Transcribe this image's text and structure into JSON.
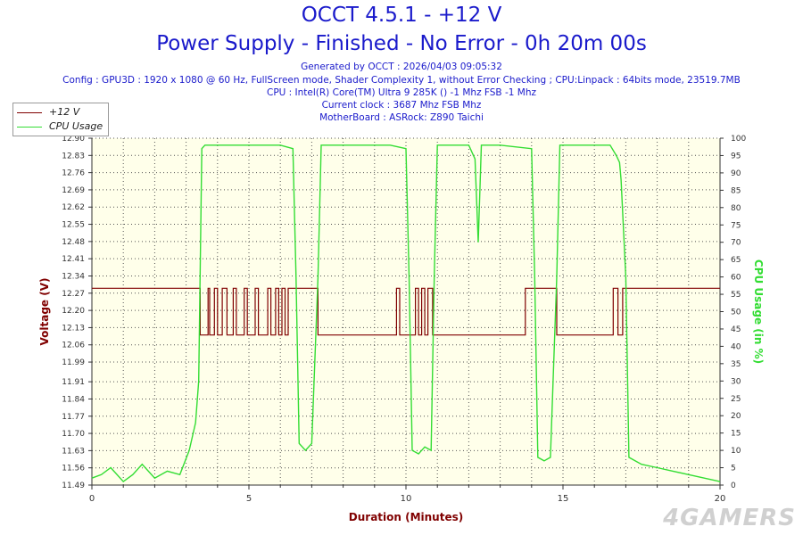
{
  "header": {
    "title": "OCCT 4.5.1 - +12 V",
    "subtitle": "Power Supply - Finished - No Error - 0h 20m 00s",
    "info_lines": [
      "Generated by OCCT : 2026/04/03 09:05:32",
      "Config : GPU3D : 1920 x 1080 @ 60 Hz, FullScreen mode, Shader Complexity 1, without Error Checking ; CPU:Linpack : 64bits mode, 23519.7MB",
      "CPU : Intel(R) Core(TM) Ultra 9 285K () -1 Mhz FSB -1 Mhz",
      "Current clock : 3687 Mhz FSB  Mhz",
      "MotherBoard : ASRock: Z890 Taichi"
    ]
  },
  "watermark": "4GAMERS",
  "colors": {
    "voltage": "#800000",
    "cpu": "#33dd33",
    "header_text": "#1a1acb",
    "plot_bg": "#ffffea"
  },
  "chart_data": {
    "type": "line",
    "xlabel": "Duration (Minutes)",
    "ylabel": "Voltage (V)",
    "y2label": "CPU Usage (in %)",
    "xlim": [
      0,
      20
    ],
    "ylim": [
      11.49,
      12.9
    ],
    "y2lim": [
      0,
      100
    ],
    "x_ticks": [
      0,
      5,
      10,
      15,
      20
    ],
    "y_ticks": [
      11.49,
      11.56,
      11.63,
      11.7,
      11.77,
      11.84,
      11.91,
      11.99,
      12.06,
      12.13,
      12.2,
      12.27,
      12.34,
      12.41,
      12.48,
      12.55,
      12.62,
      12.69,
      12.76,
      12.83,
      12.9
    ],
    "y_tick_labels": [
      "11.49",
      "11.56",
      "11.63",
      "11.70",
      "11.77",
      "11.84",
      "11.91",
      "11.99",
      "12.06",
      "12.13",
      "12.20",
      "12.27",
      "12.34",
      "12.41",
      "12.48",
      "12.55",
      "12.62",
      "12.69",
      "12.76",
      "12.83",
      "12.90"
    ],
    "y2_ticks": [
      0,
      5,
      10,
      15,
      20,
      25,
      30,
      35,
      40,
      45,
      50,
      55,
      60,
      65,
      70,
      75,
      80,
      85,
      90,
      95,
      100
    ],
    "grid": true,
    "legend_position": "top-left",
    "series": [
      {
        "name": "+12 V",
        "axis": "left",
        "x": [
          0,
          3.45,
          3.45,
          3.7,
          3.7,
          3.75,
          3.75,
          3.9,
          3.9,
          4.0,
          4.0,
          4.15,
          4.15,
          4.3,
          4.3,
          4.5,
          4.5,
          4.6,
          4.6,
          4.85,
          4.85,
          4.95,
          4.95,
          5.2,
          5.2,
          5.3,
          5.3,
          5.6,
          5.6,
          5.7,
          5.7,
          5.85,
          5.85,
          5.95,
          5.95,
          6.05,
          6.05,
          6.15,
          6.15,
          6.25,
          6.25,
          6.5,
          6.5,
          7.2,
          7.2,
          7.3,
          7.3,
          7.75,
          7.75,
          9.7,
          9.7,
          9.8,
          9.8,
          10.3,
          10.3,
          10.4,
          10.4,
          10.5,
          10.5,
          10.6,
          10.6,
          10.7,
          10.7,
          10.85,
          10.85,
          11.0,
          11.0,
          11.75,
          11.75,
          13.0,
          13.0,
          13.8,
          13.8,
          14.05,
          14.05,
          14.8,
          14.8,
          16.6,
          16.6,
          16.75,
          16.75,
          16.9,
          16.9,
          17.0,
          17.0,
          20
        ],
        "values": [
          12.29,
          12.29,
          12.1,
          12.1,
          12.29,
          12.29,
          12.1,
          12.1,
          12.29,
          12.29,
          12.1,
          12.1,
          12.29,
          12.29,
          12.1,
          12.1,
          12.29,
          12.29,
          12.1,
          12.1,
          12.29,
          12.29,
          12.1,
          12.1,
          12.29,
          12.29,
          12.1,
          12.1,
          12.29,
          12.29,
          12.1,
          12.1,
          12.29,
          12.29,
          12.1,
          12.1,
          12.29,
          12.29,
          12.1,
          12.1,
          12.29,
          12.29,
          12.29,
          12.29,
          12.1,
          12.1,
          12.1,
          12.1,
          12.1,
          12.1,
          12.29,
          12.29,
          12.1,
          12.1,
          12.29,
          12.29,
          12.1,
          12.1,
          12.29,
          12.29,
          12.1,
          12.1,
          12.29,
          12.29,
          12.1,
          12.1,
          12.1,
          12.1,
          12.1,
          12.1,
          12.1,
          12.1,
          12.29,
          12.29,
          12.29,
          12.29,
          12.1,
          12.1,
          12.29,
          12.29,
          12.1,
          12.1,
          12.29,
          12.29,
          12.29,
          12.29
        ]
      },
      {
        "name": "CPU Usage",
        "axis": "right",
        "x": [
          0,
          0.3,
          0.6,
          1.0,
          1.3,
          1.6,
          2.0,
          2.4,
          2.8,
          3.1,
          3.3,
          3.4,
          3.5,
          3.6,
          4.0,
          5.0,
          6.0,
          6.4,
          6.5,
          6.6,
          6.8,
          7.0,
          7.2,
          7.3,
          7.4,
          7.8,
          8.5,
          9.5,
          10.0,
          10.1,
          10.2,
          10.4,
          10.6,
          10.8,
          10.9,
          11.0,
          11.2,
          12.0,
          12.2,
          12.3,
          12.4,
          12.5,
          12.6,
          13.0,
          14.0,
          14.1,
          14.2,
          14.4,
          14.6,
          14.8,
          14.9,
          15.0,
          15.5,
          16.0,
          16.5,
          16.7,
          16.8,
          16.85,
          17.0,
          17.1,
          17.5,
          18.0,
          18.5,
          19.0,
          19.5,
          20
        ],
        "values": [
          2,
          3,
          5,
          1,
          3,
          6,
          2,
          4,
          3,
          10,
          18,
          30,
          97,
          98,
          98,
          98,
          98,
          97,
          60,
          12,
          10,
          12,
          60,
          98,
          98,
          98,
          98,
          98,
          97,
          60,
          10,
          9,
          11,
          10,
          60,
          98,
          98,
          98,
          94,
          70,
          98,
          98,
          98,
          98,
          97,
          60,
          8,
          7,
          8,
          60,
          98,
          98,
          98,
          98,
          98,
          95,
          93,
          88,
          60,
          8,
          6,
          5,
          4,
          3,
          2,
          1
        ]
      }
    ]
  }
}
